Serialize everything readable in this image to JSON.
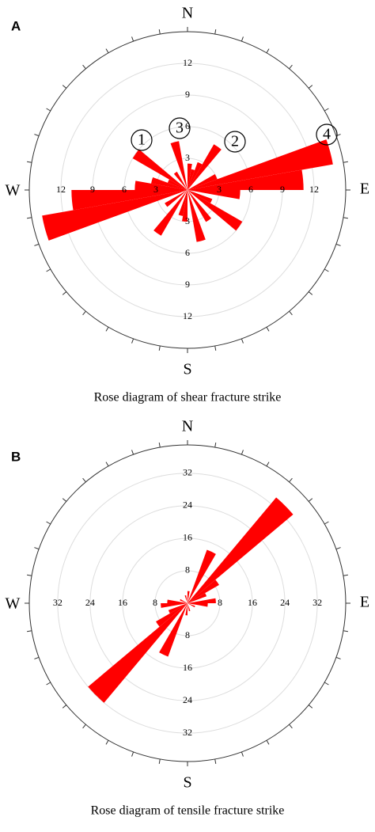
{
  "chart_data": [
    {
      "type": "rose",
      "panel": "A",
      "title": "Rose diagram of shear fracture strike",
      "directions": [
        "N",
        "E",
        "S",
        "W"
      ],
      "rlim": [
        0,
        15
      ],
      "rticks": [
        3,
        6,
        9,
        12
      ],
      "bin_width": 10,
      "color": "#ff0000",
      "theta": [
        5,
        15,
        25,
        35,
        65,
        75,
        85,
        95,
        115,
        125,
        145,
        165,
        185,
        195,
        215,
        235,
        255,
        265,
        275,
        285,
        295,
        305,
        325,
        345
      ],
      "values": [
        2.5,
        2,
        2.8,
        5,
        3,
        14,
        11,
        5,
        2.5,
        6,
        3.5,
        5,
        3,
        2.5,
        5,
        2.5,
        14,
        11,
        5,
        3.5,
        2,
        6,
        2,
        4.7
      ],
      "annotations": [
        "1",
        "2",
        "3",
        "4"
      ]
    },
    {
      "type": "rose",
      "panel": "B",
      "title": "Rose diagram of tensile fracture strike",
      "directions": [
        "N",
        "E",
        "S",
        "W"
      ],
      "rlim": [
        0,
        39
      ],
      "rticks": [
        8,
        16,
        24,
        32
      ],
      "bin_width": 10,
      "color": "#ff0000",
      "theta": [
        5,
        25,
        45,
        55,
        65,
        85,
        95,
        115,
        165,
        185,
        205,
        225,
        235,
        245,
        265,
        275,
        295,
        345
      ],
      "values": [
        3,
        14,
        34,
        9,
        5,
        7,
        5,
        2,
        2,
        3,
        14,
        32,
        9,
        5,
        6.6,
        5,
        2,
        2
      ]
    }
  ]
}
